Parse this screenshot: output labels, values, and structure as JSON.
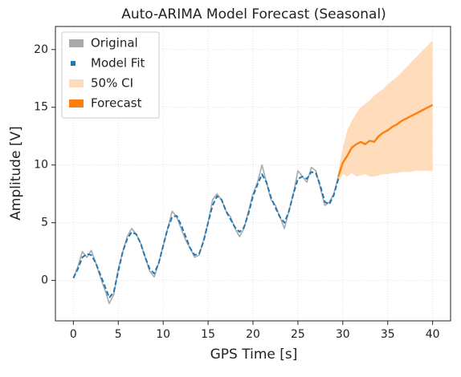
{
  "chart_data": {
    "type": "line",
    "title": "Auto-ARIMA Model Forecast (Seasonal)",
    "x_label": "GPS Time [s]",
    "y_label": "Amplitude [V]",
    "xlim": [
      -2,
      42
    ],
    "ylim": [
      -3.5,
      22
    ],
    "xticks": [
      0,
      5,
      10,
      15,
      20,
      25,
      30,
      35,
      40
    ],
    "yticks": [
      0,
      5,
      10,
      15,
      20
    ],
    "grid": true,
    "legend": "upper left",
    "series": [
      {
        "name": "Original",
        "color": "#aaaaaa",
        "style": "line",
        "x": [
          0,
          0.5,
          1,
          1.5,
          2,
          2.5,
          3,
          3.5,
          4,
          4.5,
          5,
          5.5,
          6,
          6.5,
          7,
          7.5,
          8,
          8.5,
          9,
          9.5,
          10,
          10.5,
          11,
          11.5,
          12,
          12.5,
          13,
          13.5,
          14,
          14.5,
          15,
          15.5,
          16,
          16.5,
          17,
          17.5,
          18,
          18.5,
          19,
          19.5,
          20,
          20.5,
          21,
          21.5,
          22,
          22.5,
          23,
          23.5,
          24,
          24.5,
          25,
          25.5,
          26,
          26.5,
          27,
          27.5,
          28,
          28.5,
          29,
          29.5
        ],
        "values": [
          0.2,
          1.2,
          2.5,
          2.0,
          2.6,
          1.5,
          0.3,
          -0.8,
          -2.0,
          -1.2,
          1.0,
          2.5,
          3.8,
          4.5,
          4.0,
          3.2,
          2.0,
          0.8,
          0.3,
          1.5,
          3.0,
          4.5,
          6.0,
          5.5,
          4.5,
          3.5,
          2.8,
          2.0,
          2.2,
          3.5,
          5.0,
          7.0,
          7.5,
          7.0,
          6.0,
          5.5,
          4.5,
          3.8,
          4.5,
          6.0,
          7.5,
          8.5,
          10.0,
          8.5,
          7.0,
          6.5,
          5.5,
          4.5,
          6.0,
          7.5,
          9.5,
          9.0,
          8.5,
          9.8,
          9.5,
          8.0,
          6.5,
          6.8,
          7.5,
          9.0
        ]
      },
      {
        "name": "Model Fit",
        "color": "#1f77b4",
        "style": "dashed",
        "x": [
          0,
          0.5,
          1,
          1.5,
          2,
          2.5,
          3,
          3.5,
          4,
          4.5,
          5,
          5.5,
          6,
          6.5,
          7,
          7.5,
          8,
          8.5,
          9,
          9.5,
          10,
          10.5,
          11,
          11.5,
          12,
          12.5,
          13,
          13.5,
          14,
          14.5,
          15,
          15.5,
          16,
          16.5,
          17,
          17.5,
          18,
          18.5,
          19,
          19.5,
          20,
          20.5,
          21,
          21.5,
          22,
          22.5,
          23,
          23.5,
          24,
          24.5,
          25,
          25.5,
          26,
          26.5,
          27,
          27.5,
          28,
          28.5,
          29,
          29.5
        ],
        "values": [
          0.2,
          1.0,
          2.0,
          2.3,
          2.2,
          1.5,
          0.5,
          -0.5,
          -1.5,
          -1.0,
          0.8,
          2.5,
          3.6,
          4.2,
          4.0,
          3.2,
          2.0,
          1.0,
          0.6,
          1.5,
          3.0,
          4.5,
          5.5,
          5.6,
          4.8,
          3.8,
          2.8,
          2.2,
          2.3,
          3.4,
          5.0,
          6.5,
          7.3,
          7.0,
          6.0,
          5.3,
          4.6,
          4.2,
          4.6,
          5.8,
          7.3,
          8.3,
          9.2,
          8.5,
          7.2,
          6.3,
          5.5,
          5.0,
          6.0,
          7.5,
          8.8,
          9.0,
          8.8,
          9.4,
          9.3,
          8.2,
          6.8,
          6.6,
          7.4,
          8.8
        ]
      },
      {
        "name": "50% CI",
        "color": "#ffdcbc",
        "style": "band",
        "x": [
          29.5,
          30,
          30.5,
          31,
          31.5,
          32,
          32.5,
          33,
          33.5,
          34,
          34.5,
          35,
          35.5,
          36,
          36.5,
          37,
          37.5,
          38,
          38.5,
          39,
          39.5,
          40
        ],
        "values": [
          9.5,
          11.5,
          13.0,
          13.8,
          14.5,
          15.0,
          15.3,
          15.6,
          16.0,
          16.3,
          16.6,
          17.0,
          17.3,
          17.6,
          18.0,
          18.4,
          18.8,
          19.2,
          19.6,
          20.0,
          20.4,
          20.8
        ],
        "lower": [
          8.5,
          9.2,
          9.0,
          9.3,
          9.0,
          9.1,
          9.2,
          9.0,
          9.0,
          9.1,
          9.2,
          9.2,
          9.3,
          9.3,
          9.4,
          9.4,
          9.4,
          9.5,
          9.5,
          9.5,
          9.5,
          9.5
        ]
      },
      {
        "name": "Forecast",
        "color": "#ff7f0e",
        "style": "line",
        "x": [
          29.5,
          30,
          30.5,
          31,
          31.5,
          32,
          32.5,
          33,
          33.5,
          34,
          34.5,
          35,
          35.5,
          36,
          36.5,
          37,
          37.5,
          38,
          38.5,
          39,
          39.5,
          40
        ],
        "values": [
          9.0,
          10.2,
          10.8,
          11.5,
          11.8,
          12.0,
          11.8,
          12.1,
          12.0,
          12.5,
          12.8,
          13.0,
          13.3,
          13.5,
          13.8,
          14.0,
          14.2,
          14.4,
          14.6,
          14.8,
          15.0,
          15.2
        ]
      }
    ]
  }
}
